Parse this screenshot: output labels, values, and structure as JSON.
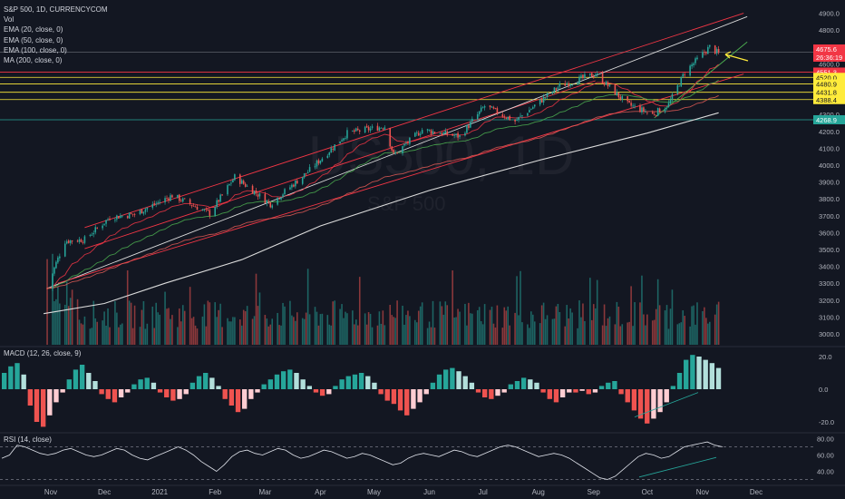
{
  "legend": {
    "symbol": "S&P 500, 1D, CURRENCYCOM",
    "vol": "Vol",
    "ema20": "EMA (20, close, 0)",
    "ema50": "EMA (50, close, 0)",
    "ema100": "EMA (100, close, 0)",
    "ma200": "MA (200, close, 0)"
  },
  "watermark": {
    "symbol": "US500, 1D",
    "name": "S&P 500"
  },
  "macd_label": "MACD (12, 26, close, 9)",
  "rsi_label": "RSI (14, close)",
  "colors": {
    "up": "#26a69a",
    "down": "#ef5350",
    "background": "#131722",
    "ema20": "#f23645",
    "ema50": "#4caf50",
    "ema100": "#e05a56",
    "ma200": "#dcdcdc",
    "channel_red": "#f23645",
    "channel_white": "#dcdcdc",
    "level_yellow": "#ffeb3b",
    "level_red": "#f23645",
    "level_green": "#26a69a",
    "arrow": "#ffeb3b"
  },
  "chart_data": [
    {
      "type": "candlestick",
      "title": "S&P 500, 1D, CURRENCYCOM",
      "y_ticks": [
        "4900.0",
        "4800.0",
        "4700.0",
        "4600.0",
        "4500.0",
        "4400.0",
        "4300.0",
        "4200.0",
        "4100.0",
        "4000.0",
        "3900.0",
        "3800.0",
        "3700.0",
        "3600.0",
        "3500.0",
        "3400.0",
        "3300.0",
        "3200.0",
        "3100.0",
        "3000.0"
      ],
      "x_ticks": [
        "Nov",
        "Dec",
        "2021",
        "Feb",
        "Mar",
        "Apr",
        "May",
        "Jun",
        "Jul",
        "Aug",
        "Sep",
        "Oct",
        "Nov",
        "Dec"
      ],
      "ylim": [
        2950,
        4900
      ],
      "price_path": [
        {
          "date": "2020-10-30",
          "close": 3270
        },
        {
          "date": "2020-11-04",
          "close": 3420
        },
        {
          "date": "2020-11-09",
          "close": 3550
        },
        {
          "date": "2020-11-20",
          "close": 3560
        },
        {
          "date": "2020-12-04",
          "close": 3690
        },
        {
          "date": "2020-12-18",
          "close": 3710
        },
        {
          "date": "2021-01-08",
          "close": 3820
        },
        {
          "date": "2021-01-29",
          "close": 3714
        },
        {
          "date": "2021-02-12",
          "close": 3930
        },
        {
          "date": "2021-03-04",
          "close": 3770
        },
        {
          "date": "2021-03-26",
          "close": 3970
        },
        {
          "date": "2021-04-16",
          "close": 4190
        },
        {
          "date": "2021-05-07",
          "close": 4230
        },
        {
          "date": "2021-05-12",
          "close": 4060
        },
        {
          "date": "2021-05-28",
          "close": 4210
        },
        {
          "date": "2021-06-18",
          "close": 4170
        },
        {
          "date": "2021-07-02",
          "close": 4350
        },
        {
          "date": "2021-07-19",
          "close": 4260
        },
        {
          "date": "2021-08-13",
          "close": 4470
        },
        {
          "date": "2021-09-02",
          "close": 4540
        },
        {
          "date": "2021-09-20",
          "close": 4360
        },
        {
          "date": "2021-10-04",
          "close": 4300
        },
        {
          "date": "2021-10-13",
          "close": 4360
        },
        {
          "date": "2021-10-22",
          "close": 4550
        },
        {
          "date": "2021-11-05",
          "close": 4700
        },
        {
          "date": "2021-11-10",
          "close": 4660
        }
      ],
      "price_labels": [
        {
          "text": "4675.6",
          "value": 4675.6,
          "color": "#f23645"
        },
        {
          "text": "26:36:19",
          "value": 4640,
          "color": "#f23645"
        },
        {
          "text": "4551.3",
          "value": 4551.3,
          "color": "#f23645"
        },
        {
          "text": "4520.0",
          "value": 4520.0,
          "color": "#ffeb3b"
        },
        {
          "text": "4480.9",
          "value": 4480.9,
          "color": "#ffeb3b"
        },
        {
          "text": "4431.8",
          "value": 4431.8,
          "color": "#ffeb3b"
        },
        {
          "text": "4388.4",
          "value": 4388.4,
          "color": "#ffeb3b"
        },
        {
          "text": "4268.9",
          "value": 4268.9,
          "color": "#26a69a"
        }
      ],
      "horizontal_levels": [
        {
          "value": 4670,
          "color": "#5d606b"
        },
        {
          "value": 4551.3,
          "color": "#f23645"
        },
        {
          "value": 4520.0,
          "color": "#ffeb3b"
        },
        {
          "value": 4480.9,
          "color": "#ffeb3b"
        },
        {
          "value": 4431.8,
          "color": "#ffeb3b"
        },
        {
          "value": 4388.4,
          "color": "#ffeb3b"
        },
        {
          "value": 4268.9,
          "color": "#26a69a"
        }
      ],
      "trend_lines": [
        {
          "from": {
            "date": "2020-11-20",
            "value": 3630
          },
          "to": {
            "date": "2021-11-24",
            "value": 4900
          },
          "color": "#f23645"
        },
        {
          "from": {
            "date": "2020-11-20",
            "value": 3505
          },
          "to": {
            "date": "2021-09-02",
            "value": 4500
          },
          "color": "#f23645"
        },
        {
          "from": {
            "date": "2020-10-30",
            "value": 3270
          },
          "to": {
            "date": "2021-11-26",
            "value": 4880
          },
          "color": "#dcdcdc"
        },
        {
          "from": {
            "date": "2020-11-05",
            "value": 3300
          },
          "to": {
            "date": "2021-11-24",
            "value": 4540
          },
          "color": "#f23645"
        },
        {
          "from": {
            "date": "2021-10-05",
            "value": 4280
          },
          "to": {
            "date": "2021-11-26",
            "value": 4730
          },
          "color": "#4caf50"
        }
      ],
      "ma200_path": [
        {
          "date": "2020-10-28",
          "value": 3120
        },
        {
          "date": "2020-12-01",
          "value": 3180
        },
        {
          "date": "2021-01-04",
          "value": 3300
        },
        {
          "date": "2021-02-16",
          "value": 3440
        },
        {
          "date": "2021-04-01",
          "value": 3640
        },
        {
          "date": "2021-06-01",
          "value": 3850
        },
        {
          "date": "2021-08-02",
          "value": 4030
        },
        {
          "date": "2021-10-01",
          "value": 4190
        },
        {
          "date": "2021-11-10",
          "value": 4310
        }
      ]
    },
    {
      "type": "histogram",
      "title": "MACD (12, 26, close, 9)",
      "y_ticks": [
        "20.0",
        "0.0",
        "-20.0"
      ],
      "ylim": [
        -25,
        25
      ],
      "values_description_free": true,
      "histogram": [
        10,
        14,
        16,
        9,
        -10,
        -20,
        -23,
        -16,
        -8,
        -2,
        6,
        12,
        15,
        10,
        5,
        -3,
        -6,
        -8,
        -5,
        -2,
        3,
        6,
        7,
        4,
        -2,
        -5,
        -7,
        -6,
        -3,
        4,
        8,
        10,
        7,
        2,
        -6,
        -10,
        -14,
        -12,
        -6,
        -2,
        3,
        6,
        9,
        11,
        12,
        10,
        6,
        2,
        -2,
        -4,
        -3,
        2,
        6,
        8,
        9,
        10,
        8,
        4,
        -3,
        -7,
        -9,
        -13,
        -16,
        -12,
        -8,
        -3,
        4,
        9,
        12,
        13,
        11,
        8,
        4,
        -2,
        -5,
        -6,
        -4,
        -2,
        3,
        5,
        7,
        6,
        4,
        -2,
        -6,
        -8,
        -5,
        -2,
        -2,
        -1,
        -3,
        -2,
        2,
        4,
        5,
        -3,
        -8,
        -13,
        -18,
        -21,
        -18,
        -14,
        -8,
        2,
        10,
        18,
        21,
        20,
        18,
        16,
        13
      ]
    },
    {
      "type": "line",
      "title": "RSI (14, close)",
      "y_ticks": [
        "80.00",
        "60.00",
        "40.00"
      ],
      "ylim": [
        25,
        85
      ],
      "values": [
        56,
        60,
        72,
        70,
        66,
        62,
        60,
        62,
        66,
        68,
        64,
        60,
        58,
        60,
        64,
        68,
        66,
        60,
        56,
        54,
        58,
        62,
        66,
        70,
        66,
        60,
        52,
        46,
        40,
        48,
        58,
        64,
        66,
        62,
        60,
        64,
        68,
        66,
        60,
        56,
        58,
        62,
        66,
        64,
        60,
        56,
        58,
        62,
        60,
        56,
        52,
        48,
        50,
        56,
        60,
        62,
        60,
        58,
        62,
        66,
        64,
        60,
        58,
        62,
        66,
        70,
        72,
        70,
        66,
        62,
        58,
        60,
        62,
        60,
        56,
        50,
        44,
        38,
        32,
        30,
        34,
        42,
        50,
        58,
        62,
        60,
        56,
        58,
        64,
        70,
        72,
        74,
        76,
        72,
        70
      ]
    }
  ]
}
